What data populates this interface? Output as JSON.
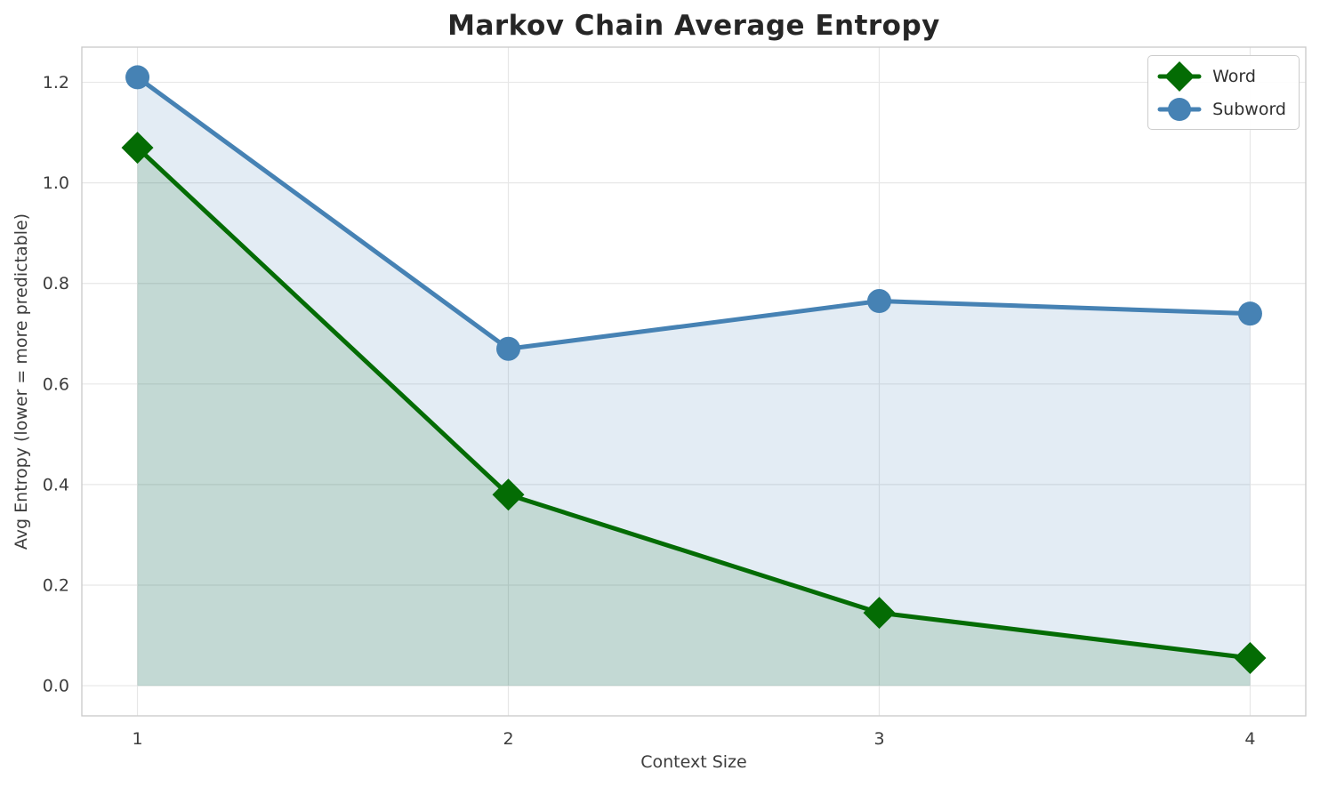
{
  "chart_data": {
    "type": "line",
    "title": "Markov Chain Average Entropy",
    "xlabel": "Context Size",
    "ylabel": "Avg Entropy (lower = more predictable)",
    "x": [
      1,
      2,
      3,
      4
    ],
    "series": [
      {
        "name": "Word",
        "marker": "diamond",
        "color": "#046c04",
        "values": [
          1.07,
          0.38,
          0.145,
          0.055
        ]
      },
      {
        "name": "Subword",
        "marker": "circle",
        "color": "#4682b4",
        "values": [
          1.21,
          0.67,
          0.765,
          0.74
        ]
      }
    ],
    "fill_to_zero": true,
    "fill_opacity": 0.15,
    "line_width": 5,
    "xticks": {
      "values": [
        1,
        2,
        3,
        4
      ],
      "labels": [
        "1",
        "2",
        "3",
        "4"
      ]
    },
    "yticks": {
      "values": [
        0.0,
        0.2,
        0.4,
        0.6,
        0.8,
        1.0,
        1.2
      ],
      "labels": [
        "0.0",
        "0.2",
        "0.4",
        "0.6",
        "0.8",
        "1.0",
        "1.2"
      ]
    },
    "xlim": [
      0.85,
      4.15
    ],
    "ylim": [
      -0.06,
      1.27
    ],
    "grid": true,
    "legend": {
      "position": "upper right",
      "entries": [
        "Word",
        "Subword"
      ]
    },
    "colors": {
      "grid": "#e7e7e7",
      "spine": "#c9c9c9",
      "tick_text": "#3d3d3d",
      "title_text": "#262626",
      "background": "#ffffff"
    }
  }
}
